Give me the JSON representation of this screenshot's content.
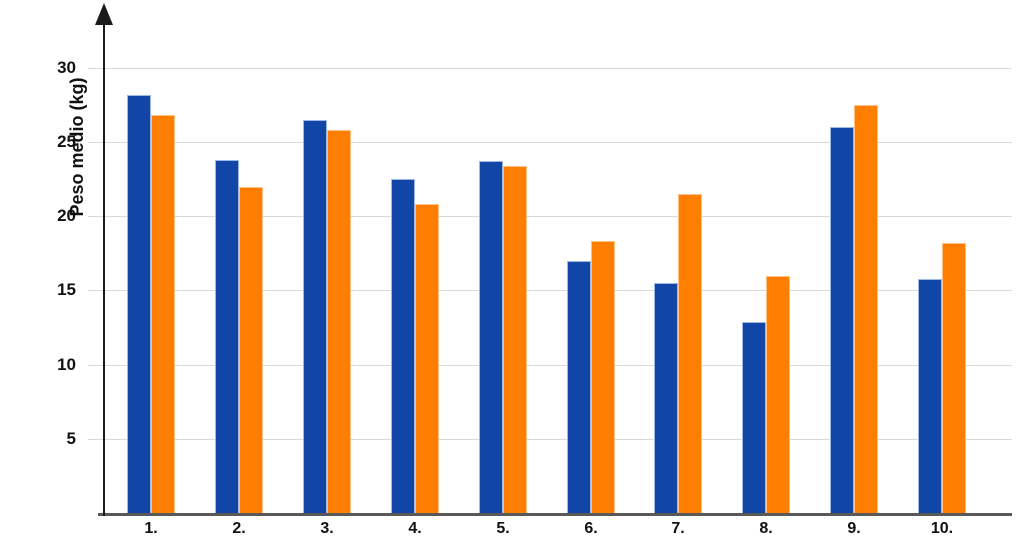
{
  "chart_data": {
    "type": "bar",
    "title": "",
    "xlabel": "",
    "ylabel": "Peso medio (kg)",
    "categories": [
      "1.",
      "2.",
      "3.",
      "4.",
      "5.",
      "6.",
      "7.",
      "8.",
      "9.",
      "10."
    ],
    "series": [
      {
        "name": "serie-azul",
        "color": "#1146A6",
        "border_color": "#9DB9E8",
        "values": [
          28.2,
          23.8,
          26.5,
          22.5,
          23.7,
          17.0,
          15.5,
          12.9,
          26.0,
          15.8
        ]
      },
      {
        "name": "serie-naranja",
        "color": "#FF7E00",
        "border_color": "#FFC285",
        "values": [
          26.8,
          22.0,
          25.8,
          20.8,
          23.4,
          18.3,
          21.5,
          16.0,
          27.5,
          18.2
        ]
      }
    ],
    "y_ticks": [
      30,
      25,
      20,
      15,
      10,
      5
    ],
    "ylim": [
      0,
      33
    ],
    "grid": true,
    "legend": false,
    "colors": {
      "gridline": "#D9D9D9",
      "x_axis_line": "#595959",
      "y_axis_line": "#1A1A1A",
      "text": "#111111"
    }
  }
}
